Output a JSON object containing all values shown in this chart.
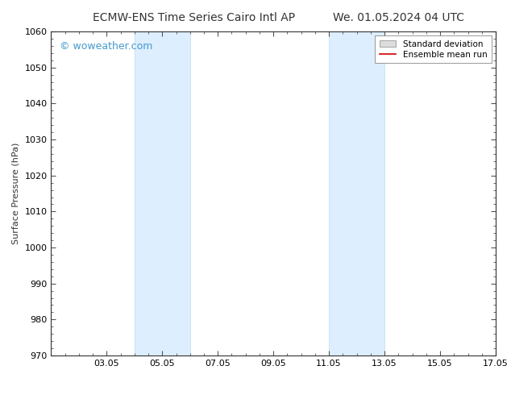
{
  "title_left": "ECMW-ENS Time Series Cairo Intl AP",
  "title_right": "We. 01.05.2024 04 UTC",
  "ylabel": "Surface Pressure (hPa)",
  "ylim": [
    970,
    1060
  ],
  "yticks": [
    970,
    980,
    990,
    1000,
    1010,
    1020,
    1030,
    1040,
    1050,
    1060
  ],
  "xlim": [
    0,
    16
  ],
  "xtick_labels": [
    "03.05",
    "05.05",
    "07.05",
    "09.05",
    "11.05",
    "13.05",
    "15.05",
    "17.05"
  ],
  "xtick_positions": [
    2,
    4,
    6,
    8,
    10,
    12,
    14,
    16
  ],
  "shaded_bands": [
    {
      "x_start": 3.0,
      "x_end": 5.0
    },
    {
      "x_start": 10.0,
      "x_end": 12.0
    }
  ],
  "shaded_color": "#ddeeff",
  "shaded_edge_color": "#bbddee",
  "watermark_text": "© woweather.com",
  "watermark_color": "#4499cc",
  "background_color": "#ffffff",
  "grid_color": "#dddddd",
  "legend_std_dev_facecolor": "#dddddd",
  "legend_std_dev_edgecolor": "#aaaaaa",
  "legend_ensemble_color": "#cc0000",
  "title_fontsize": 10,
  "title_color": "#333333",
  "axis_label_fontsize": 8,
  "tick_fontsize": 8,
  "watermark_fontsize": 9
}
